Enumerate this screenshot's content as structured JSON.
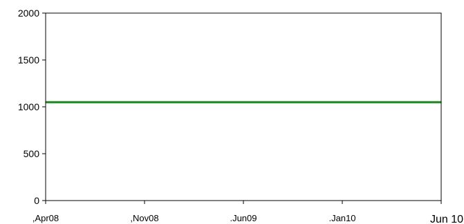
{
  "chart_data": {
    "type": "line",
    "title": "",
    "xlabel": "",
    "ylabel": "",
    "ylim": [
      0,
      2000
    ],
    "grid": false,
    "legend": "none",
    "y_ticks": [
      0,
      500,
      1000,
      1500,
      2000
    ],
    "y_tick_labels": [
      "0",
      "500",
      "1000",
      "1500",
      "2000"
    ],
    "x_tick_labels": [
      ",Apr08",
      ",Nov08",
      ".Jun09",
      ".Jan10",
      "Jun 10"
    ],
    "x_tick_index": [
      0,
      1,
      2,
      3,
      4
    ],
    "series": [
      {
        "color": "#138a13",
        "x": [
          0,
          4
        ],
        "values": [
          1050,
          1050
        ]
      }
    ]
  }
}
